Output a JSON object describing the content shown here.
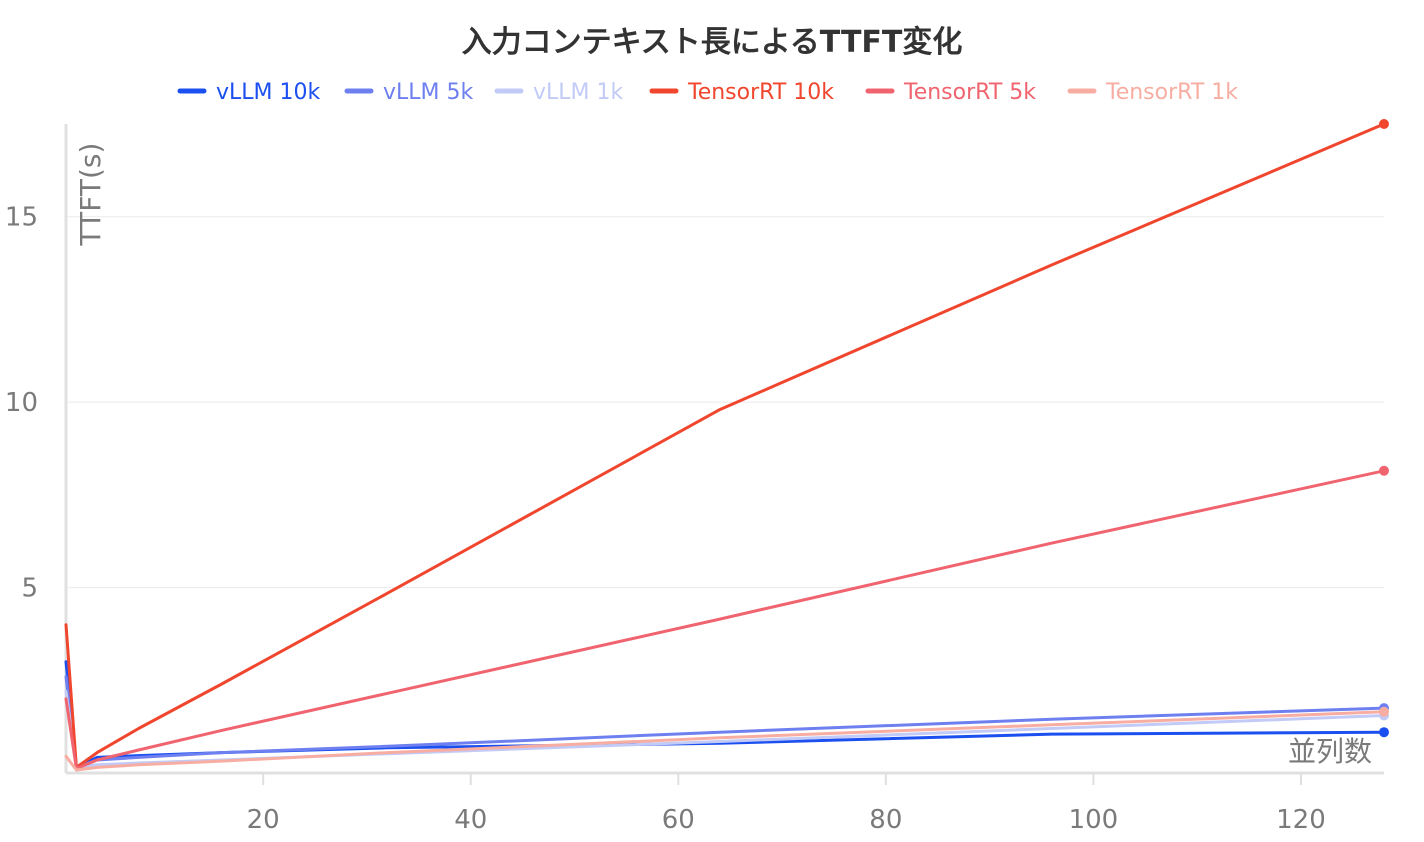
{
  "chart_data": {
    "type": "line",
    "title": "入力コンテキスト長によるTTFT変化",
    "xlabel": "並列数",
    "ylabel": "TTFT(s)",
    "xlim": [
      1,
      128
    ],
    "ylim": [
      0,
      17.5
    ],
    "x_ticks": [
      20,
      40,
      60,
      80,
      100,
      120
    ],
    "y_ticks": [
      5,
      10,
      15
    ],
    "grid": true,
    "legend_position": "top",
    "x": [
      1,
      2,
      4,
      8,
      16,
      32,
      64,
      96,
      128
    ],
    "series": [
      {
        "name": "vLLM 10k",
        "color": "#1c4ff0",
        "values": [
          3.0,
          0.15,
          0.42,
          0.47,
          0.55,
          0.68,
          0.8,
          1.05,
          1.1
        ]
      },
      {
        "name": "vLLM 5k",
        "color": "#6e80f0",
        "values": [
          2.6,
          0.15,
          0.35,
          0.42,
          0.55,
          0.72,
          1.1,
          1.45,
          1.75
        ]
      },
      {
        "name": "vLLM 1k",
        "color": "#c2cbf7",
        "values": [
          2.2,
          0.15,
          0.22,
          0.27,
          0.35,
          0.52,
          0.85,
          1.2,
          1.55
        ]
      },
      {
        "name": "TensorRT 10k",
        "color": "#f0462e",
        "values": [
          4.0,
          0.15,
          0.55,
          1.2,
          2.4,
          4.85,
          9.8,
          13.7,
          17.5
        ]
      },
      {
        "name": "TensorRT 5k",
        "color": "#f06470",
        "values": [
          2.0,
          0.12,
          0.35,
          0.62,
          1.15,
          2.15,
          4.15,
          6.2,
          8.15
        ]
      },
      {
        "name": "TensorRT 1k",
        "color": "#f7ada2",
        "values": [
          0.45,
          0.08,
          0.15,
          0.22,
          0.32,
          0.55,
          0.95,
          1.3,
          1.65
        ]
      }
    ]
  }
}
